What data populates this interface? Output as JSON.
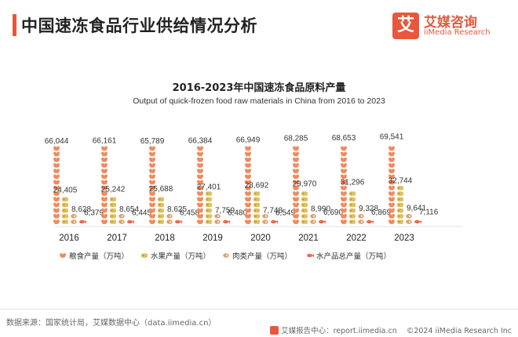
{
  "header": {
    "title": "中国速冻食品行业供给情况分析",
    "logo_mark": "艾",
    "logo_cn": "艾媒咨询",
    "logo_en": "iiMedia Research"
  },
  "chart_data": {
    "type": "bar",
    "title": "2016-2023年中国速冻食品原料产量",
    "subtitle": "Output of quick-frozen food raw materials in China from 2016 to 2023",
    "categories": [
      "2016",
      "2017",
      "2018",
      "2019",
      "2020",
      "2021",
      "2022",
      "2023"
    ],
    "series": [
      {
        "name": "粮食产量（万吨）",
        "icon": "wheat-icon",
        "color": "#f08a5d",
        "values": [
          66044,
          66161,
          65789,
          66384,
          66949,
          68285,
          68653,
          69541
        ],
        "labels": [
          "66,044",
          "66,161",
          "65,789",
          "66,384",
          "66,949",
          "68,285",
          "68,653",
          "69,541"
        ]
      },
      {
        "name": "水果产量（万吨）",
        "icon": "fruit-icon",
        "color": "#e0c060",
        "values": [
          24405,
          25242,
          25688,
          27401,
          28692,
          29970,
          31296,
          32744
        ],
        "labels": [
          "24,405",
          "25,242",
          "25,688",
          "27,401",
          "28,692",
          "29,970",
          "31,296",
          "32,744"
        ]
      },
      {
        "name": "肉类产量（万吨）",
        "icon": "meat-icon",
        "color": "#e0a070",
        "values": [
          8628,
          8654,
          8625,
          7759,
          7748,
          8990,
          9328,
          9641
        ],
        "labels": [
          "8,628",
          "8,654",
          "8,625",
          "7,759",
          "7,748",
          "8,990",
          "9,328",
          "9,641"
        ]
      },
      {
        "name": "水产品总产量（万吨）",
        "icon": "fish-icon",
        "color": "#e86a4a",
        "values": [
          6379,
          6445,
          6458,
          6480,
          6549,
          6690,
          6869,
          7116
        ],
        "labels": [
          "6,379",
          "6,445",
          "6,458",
          "6,480",
          "6,549",
          "6,690",
          "6,869",
          "7,116"
        ]
      }
    ],
    "ylim": [
      0,
      72000
    ],
    "grid": false,
    "legend_position": "bottom-left"
  },
  "footer": {
    "source": "数据来源：国家统计局，艾媒数据中心（data.iimedia.cn）",
    "report_link": "艾媒报告中心：report.iimedia.cn",
    "copyright": "©2024  iiMedia Research  Inc"
  }
}
